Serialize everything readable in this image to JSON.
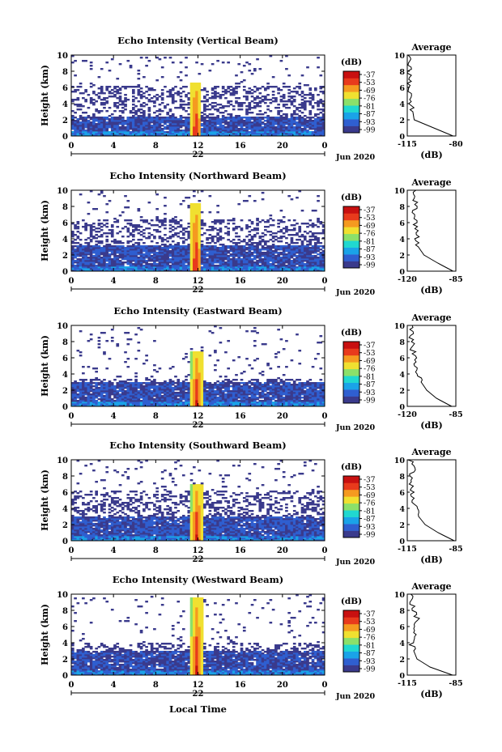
{
  "figure": {
    "xlabel_global": "Local Time",
    "date_label": "Jun 2020",
    "day_label": "22",
    "avg_title": "Average",
    "avg_xlabel": "(dB)",
    "colorbar_title": "(dB)",
    "colorbar_ticks": [
      "-37",
      "-53",
      "-69",
      "-76",
      "-81",
      "-87",
      "-93",
      "-99"
    ],
    "colorscale": [
      "#3a3a8c",
      "#2f5fd0",
      "#1aa3e8",
      "#20d8d0",
      "#8be06a",
      "#f0e030",
      "#f59a20",
      "#e83a1c",
      "#c81010"
    ]
  },
  "chart_data": [
    {
      "type": "heatmap",
      "title": "Echo Intensity (Vertical Beam)",
      "ylabel": "Height (km)",
      "x_ticks": [
        "0",
        "4",
        "8",
        "12",
        "16",
        "20",
        "0"
      ],
      "y_ticks": [
        "0",
        "2",
        "4",
        "6",
        "8",
        "10"
      ],
      "xlim": [
        0,
        24
      ],
      "ylim": [
        0,
        10
      ],
      "profile": {
        "layer_top": 2.5,
        "sparse_top": 6.3,
        "plume_top": 6.6,
        "plume_x": 11.8
      },
      "average": {
        "x_ticks": [
          "-115",
          "-80"
        ],
        "xlim": [
          -115,
          -80
        ],
        "heights": [
          0,
          1,
          2,
          3,
          4,
          5,
          6,
          7,
          8,
          9,
          10
        ],
        "values": [
          -82,
          -96,
          -110,
          -111,
          -112,
          -113,
          -113,
          -114,
          -113,
          -113,
          -114
        ]
      }
    },
    {
      "type": "heatmap",
      "title": "Echo Intensity (Northward Beam)",
      "ylabel": "Height (km)",
      "x_ticks": [
        "0",
        "4",
        "8",
        "12",
        "16",
        "20",
        "0"
      ],
      "y_ticks": [
        "0",
        "2",
        "4",
        "6",
        "8",
        "10"
      ],
      "xlim": [
        0,
        24
      ],
      "ylim": [
        0,
        10
      ],
      "profile": {
        "layer_top": 3.2,
        "sparse_top": 6.5,
        "plume_top": 8.3,
        "plume_x": 11.8
      },
      "average": {
        "x_ticks": [
          "-120",
          "-85"
        ],
        "xlim": [
          -120,
          -85
        ],
        "heights": [
          0,
          1,
          2,
          3,
          4,
          5,
          6,
          7,
          8,
          9,
          10
        ],
        "values": [
          -87,
          -98,
          -108,
          -112,
          -113,
          -114,
          -114,
          -115,
          -114,
          -115,
          -115
        ]
      }
    },
    {
      "type": "heatmap",
      "title": "Echo Intensity (Eastward Beam)",
      "ylabel": "Height (km)",
      "x_ticks": [
        "0",
        "4",
        "8",
        "12",
        "16",
        "20",
        "0"
      ],
      "y_ticks": [
        "0",
        "2",
        "4",
        "6",
        "8",
        "10"
      ],
      "xlim": [
        0,
        24
      ],
      "ylim": [
        0,
        10
      ],
      "profile": {
        "layer_top": 3.0,
        "sparse_top": 3.5,
        "plume_top": 6.8,
        "plume_x": 11.9
      },
      "average": {
        "x_ticks": [
          "-120",
          "-85"
        ],
        "xlim": [
          -120,
          -85
        ],
        "heights": [
          0,
          1,
          2,
          3,
          4,
          5,
          6,
          7,
          8,
          9,
          10
        ],
        "values": [
          -88,
          -99,
          -106,
          -110,
          -112,
          -113,
          -115,
          -116,
          -117,
          -117,
          -118
        ]
      }
    },
    {
      "type": "heatmap",
      "title": "Echo Intensity (Southward Beam)",
      "ylabel": "Height (km)",
      "x_ticks": [
        "0",
        "4",
        "8",
        "12",
        "16",
        "20",
        "0"
      ],
      "y_ticks": [
        "0",
        "2",
        "4",
        "6",
        "8",
        "10"
      ],
      "xlim": [
        0,
        24
      ],
      "ylim": [
        0,
        10
      ],
      "profile": {
        "layer_top": 3.0,
        "sparse_top": 6.2,
        "plume_top": 7.0,
        "plume_x": 11.9
      },
      "average": {
        "x_ticks": [
          "-115",
          "-85"
        ],
        "xlim": [
          -115,
          -85
        ],
        "heights": [
          0,
          1,
          2,
          3,
          4,
          5,
          6,
          7,
          8,
          9,
          10
        ],
        "values": [
          -86,
          -96,
          -104,
          -108,
          -110,
          -111,
          -112,
          -112,
          -112,
          -112,
          -113
        ]
      }
    },
    {
      "type": "heatmap",
      "title": "Echo Intensity (Westward Beam)",
      "ylabel": "Height (km)",
      "x_ticks": [
        "0",
        "4",
        "8",
        "12",
        "16",
        "20",
        "0"
      ],
      "y_ticks": [
        "0",
        "2",
        "4",
        "6",
        "8",
        "10"
      ],
      "xlim": [
        0,
        24
      ],
      "ylim": [
        0,
        10
      ],
      "profile": {
        "layer_top": 3.0,
        "sparse_top": 4.0,
        "plume_top": 9.6,
        "plume_x": 11.9
      },
      "average": {
        "x_ticks": [
          "-115",
          "-85"
        ],
        "xlim": [
          -115,
          -85
        ],
        "heights": [
          0,
          1,
          2,
          3,
          4,
          5,
          6,
          7,
          8,
          9,
          10
        ],
        "values": [
          -87,
          -101,
          -109,
          -111,
          -112,
          -111,
          -110,
          -109,
          -110,
          -112,
          -114
        ]
      }
    }
  ]
}
